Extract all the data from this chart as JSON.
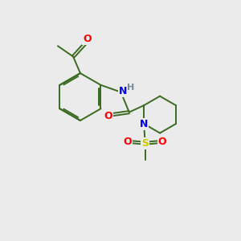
{
  "background_color": "#ebebeb",
  "bond_color": "#3a6b20",
  "atom_colors": {
    "O": "#ff0000",
    "N": "#0000ee",
    "S": "#cccc00",
    "H": "#778899",
    "C": "#3a6b20"
  },
  "line_width": 1.4,
  "font_size": 8.5,
  "fig_size": [
    3.0,
    3.0
  ],
  "dpi": 100
}
